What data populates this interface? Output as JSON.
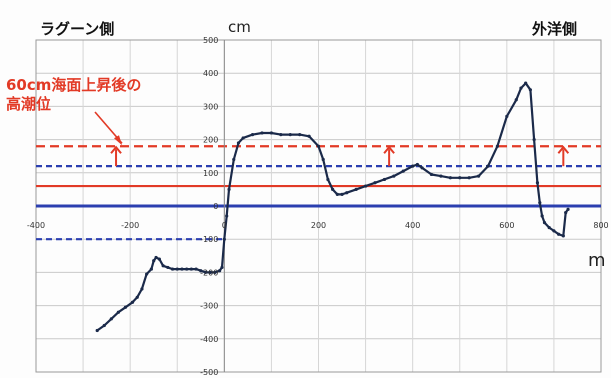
{
  "chart_data": {
    "type": "line",
    "labels": {
      "left_side": "ラグーン側",
      "right_side": "外洋側",
      "y_unit": "cm",
      "x_unit": "m",
      "annotation": "60cm海面上昇後の\n高潮位"
    },
    "xlim": [
      -400,
      800
    ],
    "ylim": [
      -500,
      500
    ],
    "x_ticks": [
      -400,
      -200,
      0,
      200,
      400,
      600,
      800
    ],
    "y_ticks": [
      -500,
      -400,
      -300,
      -200,
      -100,
      0,
      100,
      200,
      300,
      400,
      500
    ],
    "grid": true,
    "colors": {
      "profile": "#1b2a4a",
      "red": "#e23a26",
      "blue": "#2b3fb0"
    },
    "reference_lines": [
      {
        "y": 180,
        "color": "#e23a26",
        "style": "dashed"
      },
      {
        "y": 120,
        "color": "#2b3fb0",
        "style": "dashed"
      },
      {
        "y": 60,
        "color": "#e23a26",
        "style": "solid"
      },
      {
        "y": 0,
        "color": "#2b3fb0",
        "style": "solid"
      },
      {
        "y": -100,
        "color": "#2b3fb0",
        "style": "dashed",
        "x_range": [
          -400,
          0
        ]
      }
    ],
    "arrows": [
      {
        "x": -230,
        "from": 120,
        "to": 180
      },
      {
        "x": 350,
        "from": 120,
        "to": 180
      },
      {
        "x": 720,
        "from": 120,
        "to": 180
      }
    ],
    "series": [
      {
        "x": [
          -270,
          -255,
          -240,
          -225,
          -210,
          -195,
          -185,
          -175,
          -165,
          -155,
          -150,
          -145,
          -138,
          -130,
          -120,
          -110,
          -100,
          -90,
          -80,
          -70,
          -60,
          -50,
          -40,
          -30,
          -20,
          -10,
          -5,
          0,
          5,
          10,
          20,
          30,
          40,
          60,
          80,
          100,
          120,
          140,
          160,
          180,
          200,
          210,
          220,
          230,
          240,
          250,
          260,
          280,
          300,
          320,
          340,
          360,
          380,
          400,
          410,
          420,
          440,
          460,
          480,
          500,
          520,
          540,
          560,
          580,
          600,
          620,
          630,
          640,
          650,
          658,
          665,
          670,
          675,
          680,
          690,
          700,
          710,
          720,
          725,
          730
        ],
        "y": [
          -375,
          -360,
          -340,
          -320,
          -305,
          -290,
          -275,
          -250,
          -205,
          -190,
          -165,
          -155,
          -160,
          -180,
          -185,
          -190,
          -190,
          -190,
          -190,
          -190,
          -190,
          -195,
          -200,
          -200,
          -200,
          -195,
          -185,
          -100,
          -30,
          50,
          140,
          190,
          205,
          215,
          220,
          220,
          215,
          215,
          215,
          210,
          180,
          140,
          80,
          50,
          35,
          35,
          40,
          50,
          60,
          70,
          80,
          90,
          105,
          120,
          125,
          115,
          95,
          90,
          85,
          85,
          85,
          90,
          120,
          180,
          270,
          320,
          355,
          370,
          350,
          200,
          70,
          10,
          -30,
          -50,
          -65,
          -75,
          -85,
          -90,
          -20,
          -10
        ]
      }
    ]
  }
}
